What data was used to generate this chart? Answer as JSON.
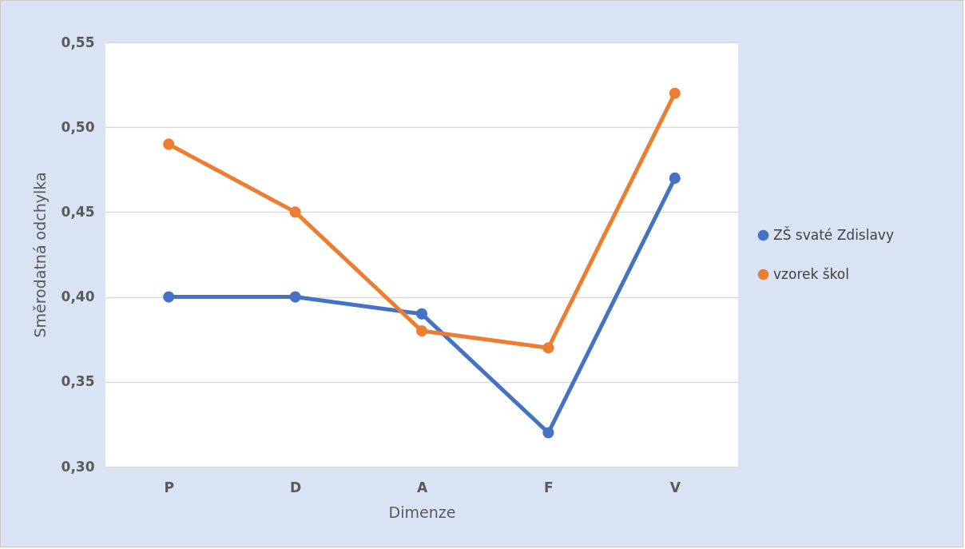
{
  "chart_data": {
    "type": "line",
    "xlabel": "Dimenze",
    "ylabel": "Směrodatná odchylka",
    "categories": [
      "P",
      "D",
      "A",
      "F",
      "V"
    ],
    "series": [
      {
        "name": "ZŠ svaté Zdislavy",
        "color": "#4472c4",
        "values": [
          0.4,
          0.4,
          0.39,
          0.32,
          0.47
        ]
      },
      {
        "name": "vzorek škol",
        "color": "#ed7d31",
        "values": [
          0.49,
          0.45,
          0.38,
          0.37,
          0.52
        ]
      }
    ],
    "ylim": [
      0.3,
      0.55
    ],
    "yticks": [
      {
        "value": 0.3,
        "label": "0,30"
      },
      {
        "value": 0.35,
        "label": "0,35"
      },
      {
        "value": 0.4,
        "label": "0,40"
      },
      {
        "value": 0.45,
        "label": "0,45"
      },
      {
        "value": 0.5,
        "label": "0,50"
      },
      {
        "value": 0.55,
        "label": "0,55"
      }
    ],
    "grid": "y",
    "legend": "right",
    "marker": "circle",
    "line_style": "solid"
  }
}
